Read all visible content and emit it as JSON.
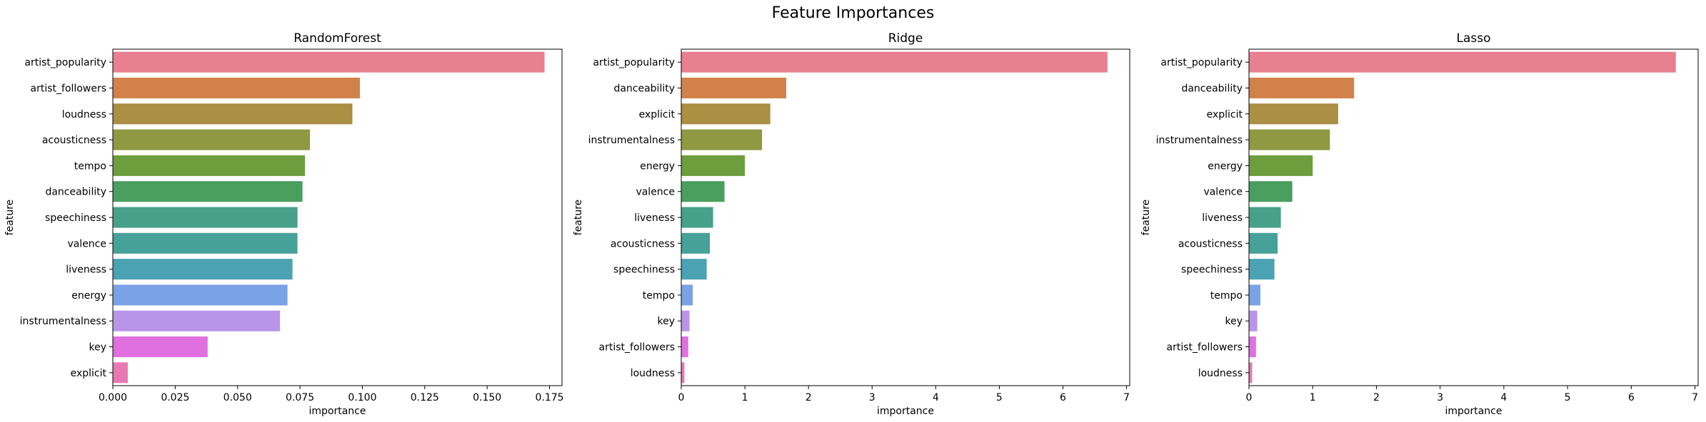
{
  "figure": {
    "title": "Feature Importances"
  },
  "chart_data": [
    {
      "type": "bar",
      "orientation": "horizontal",
      "title": "RandomForest",
      "xlabel": "importance",
      "ylabel": "feature",
      "xlim": [
        0,
        0.18
      ],
      "xticks": [
        0.0,
        0.025,
        0.05,
        0.075,
        0.1,
        0.125,
        0.15,
        0.175
      ],
      "xtick_labels": [
        "0.000",
        "0.025",
        "0.050",
        "0.075",
        "0.100",
        "0.125",
        "0.150",
        "0.175"
      ],
      "categories": [
        "artist_popularity",
        "artist_followers",
        "loudness",
        "acousticness",
        "tempo",
        "danceability",
        "speechiness",
        "valence",
        "liveness",
        "energy",
        "instrumentalness",
        "key",
        "explicit"
      ],
      "values": [
        0.173,
        0.099,
        0.096,
        0.079,
        0.077,
        0.076,
        0.074,
        0.074,
        0.072,
        0.07,
        0.067,
        0.038,
        0.006
      ],
      "colors": [
        "#e8808f",
        "#d2814a",
        "#ab8f42",
        "#8e9942",
        "#6c9e3e",
        "#4a9e5e",
        "#47a08a",
        "#46a198",
        "#4ba2b3",
        "#7aa2e6",
        "#b995e9",
        "#e06fe0",
        "#e879b4"
      ],
      "grid": false
    },
    {
      "type": "bar",
      "orientation": "horizontal",
      "title": "Ridge",
      "xlabel": "importance",
      "ylabel": "feature",
      "xlim": [
        0,
        7.05
      ],
      "xticks": [
        0,
        1,
        2,
        3,
        4,
        5,
        6,
        7
      ],
      "xtick_labels": [
        "0",
        "1",
        "2",
        "3",
        "4",
        "5",
        "6",
        "7"
      ],
      "categories": [
        "artist_popularity",
        "danceability",
        "explicit",
        "instrumentalness",
        "energy",
        "valence",
        "liveness",
        "acousticness",
        "speechiness",
        "tempo",
        "key",
        "artist_followers",
        "loudness"
      ],
      "values": [
        6.7,
        1.65,
        1.4,
        1.27,
        1.0,
        0.68,
        0.5,
        0.45,
        0.4,
        0.18,
        0.13,
        0.11,
        0.05
      ],
      "colors": [
        "#e8808f",
        "#d2814a",
        "#ab8f42",
        "#8e9942",
        "#6c9e3e",
        "#4a9e5e",
        "#47a08a",
        "#46a198",
        "#4ba2b3",
        "#7aa2e6",
        "#b995e9",
        "#e06fe0",
        "#e879b4"
      ],
      "grid": false
    },
    {
      "type": "bar",
      "orientation": "horizontal",
      "title": "Lasso",
      "xlabel": "importance",
      "ylabel": "feature",
      "xlim": [
        0,
        7.05
      ],
      "xticks": [
        0,
        1,
        2,
        3,
        4,
        5,
        6,
        7
      ],
      "xtick_labels": [
        "0",
        "1",
        "2",
        "3",
        "4",
        "5",
        "6",
        "7"
      ],
      "categories": [
        "artist_popularity",
        "danceability",
        "explicit",
        "instrumentalness",
        "energy",
        "valence",
        "liveness",
        "acousticness",
        "speechiness",
        "tempo",
        "key",
        "artist_followers",
        "loudness"
      ],
      "values": [
        6.7,
        1.65,
        1.4,
        1.27,
        1.0,
        0.68,
        0.5,
        0.45,
        0.4,
        0.18,
        0.13,
        0.11,
        0.05
      ],
      "colors": [
        "#e8808f",
        "#d2814a",
        "#ab8f42",
        "#8e9942",
        "#6c9e3e",
        "#4a9e5e",
        "#47a08a",
        "#46a198",
        "#4ba2b3",
        "#7aa2e6",
        "#b995e9",
        "#e06fe0",
        "#e879b4"
      ],
      "grid": false
    }
  ]
}
